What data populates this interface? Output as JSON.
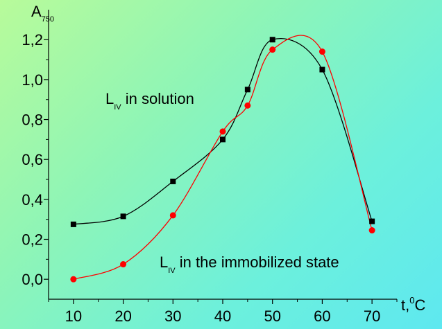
{
  "chart_data": {
    "type": "line",
    "title": "",
    "ylabel": {
      "main": "A",
      "sub": "750"
    },
    "xlabel": {
      "main": "t,",
      "sup": "0",
      "unit": "C"
    },
    "xlim": [
      5,
      75
    ],
    "ylim": [
      -0.1,
      1.35
    ],
    "x_ticks": [
      "10",
      "20",
      "30",
      "40",
      "50",
      "60",
      "70"
    ],
    "y_ticks": [
      "0,0",
      "0,2",
      "0,4",
      "0,6",
      "0,8",
      "1,0",
      "1,2"
    ],
    "series": [
      {
        "name": "LIV in solution",
        "color": "#000000",
        "marker": "square",
        "x": [
          10,
          20,
          30,
          40,
          45,
          50,
          60,
          70
        ],
        "y": [
          0.275,
          0.315,
          0.49,
          0.7,
          0.95,
          1.2,
          1.05,
          0.29
        ]
      },
      {
        "name": "LIV in the immobilized state",
        "color": "#ff0000",
        "marker": "circle",
        "x": [
          10,
          20,
          30,
          40,
          45,
          50,
          60,
          70
        ],
        "y": [
          0.0,
          0.075,
          0.32,
          0.74,
          0.87,
          1.15,
          1.14,
          0.245
        ]
      }
    ],
    "annotations": [
      {
        "main": "L",
        "sub": "IV",
        "rest": " in solution"
      },
      {
        "main": "L",
        "sub": "IV",
        "rest": " in the immobilized state"
      }
    ],
    "grid": false
  }
}
